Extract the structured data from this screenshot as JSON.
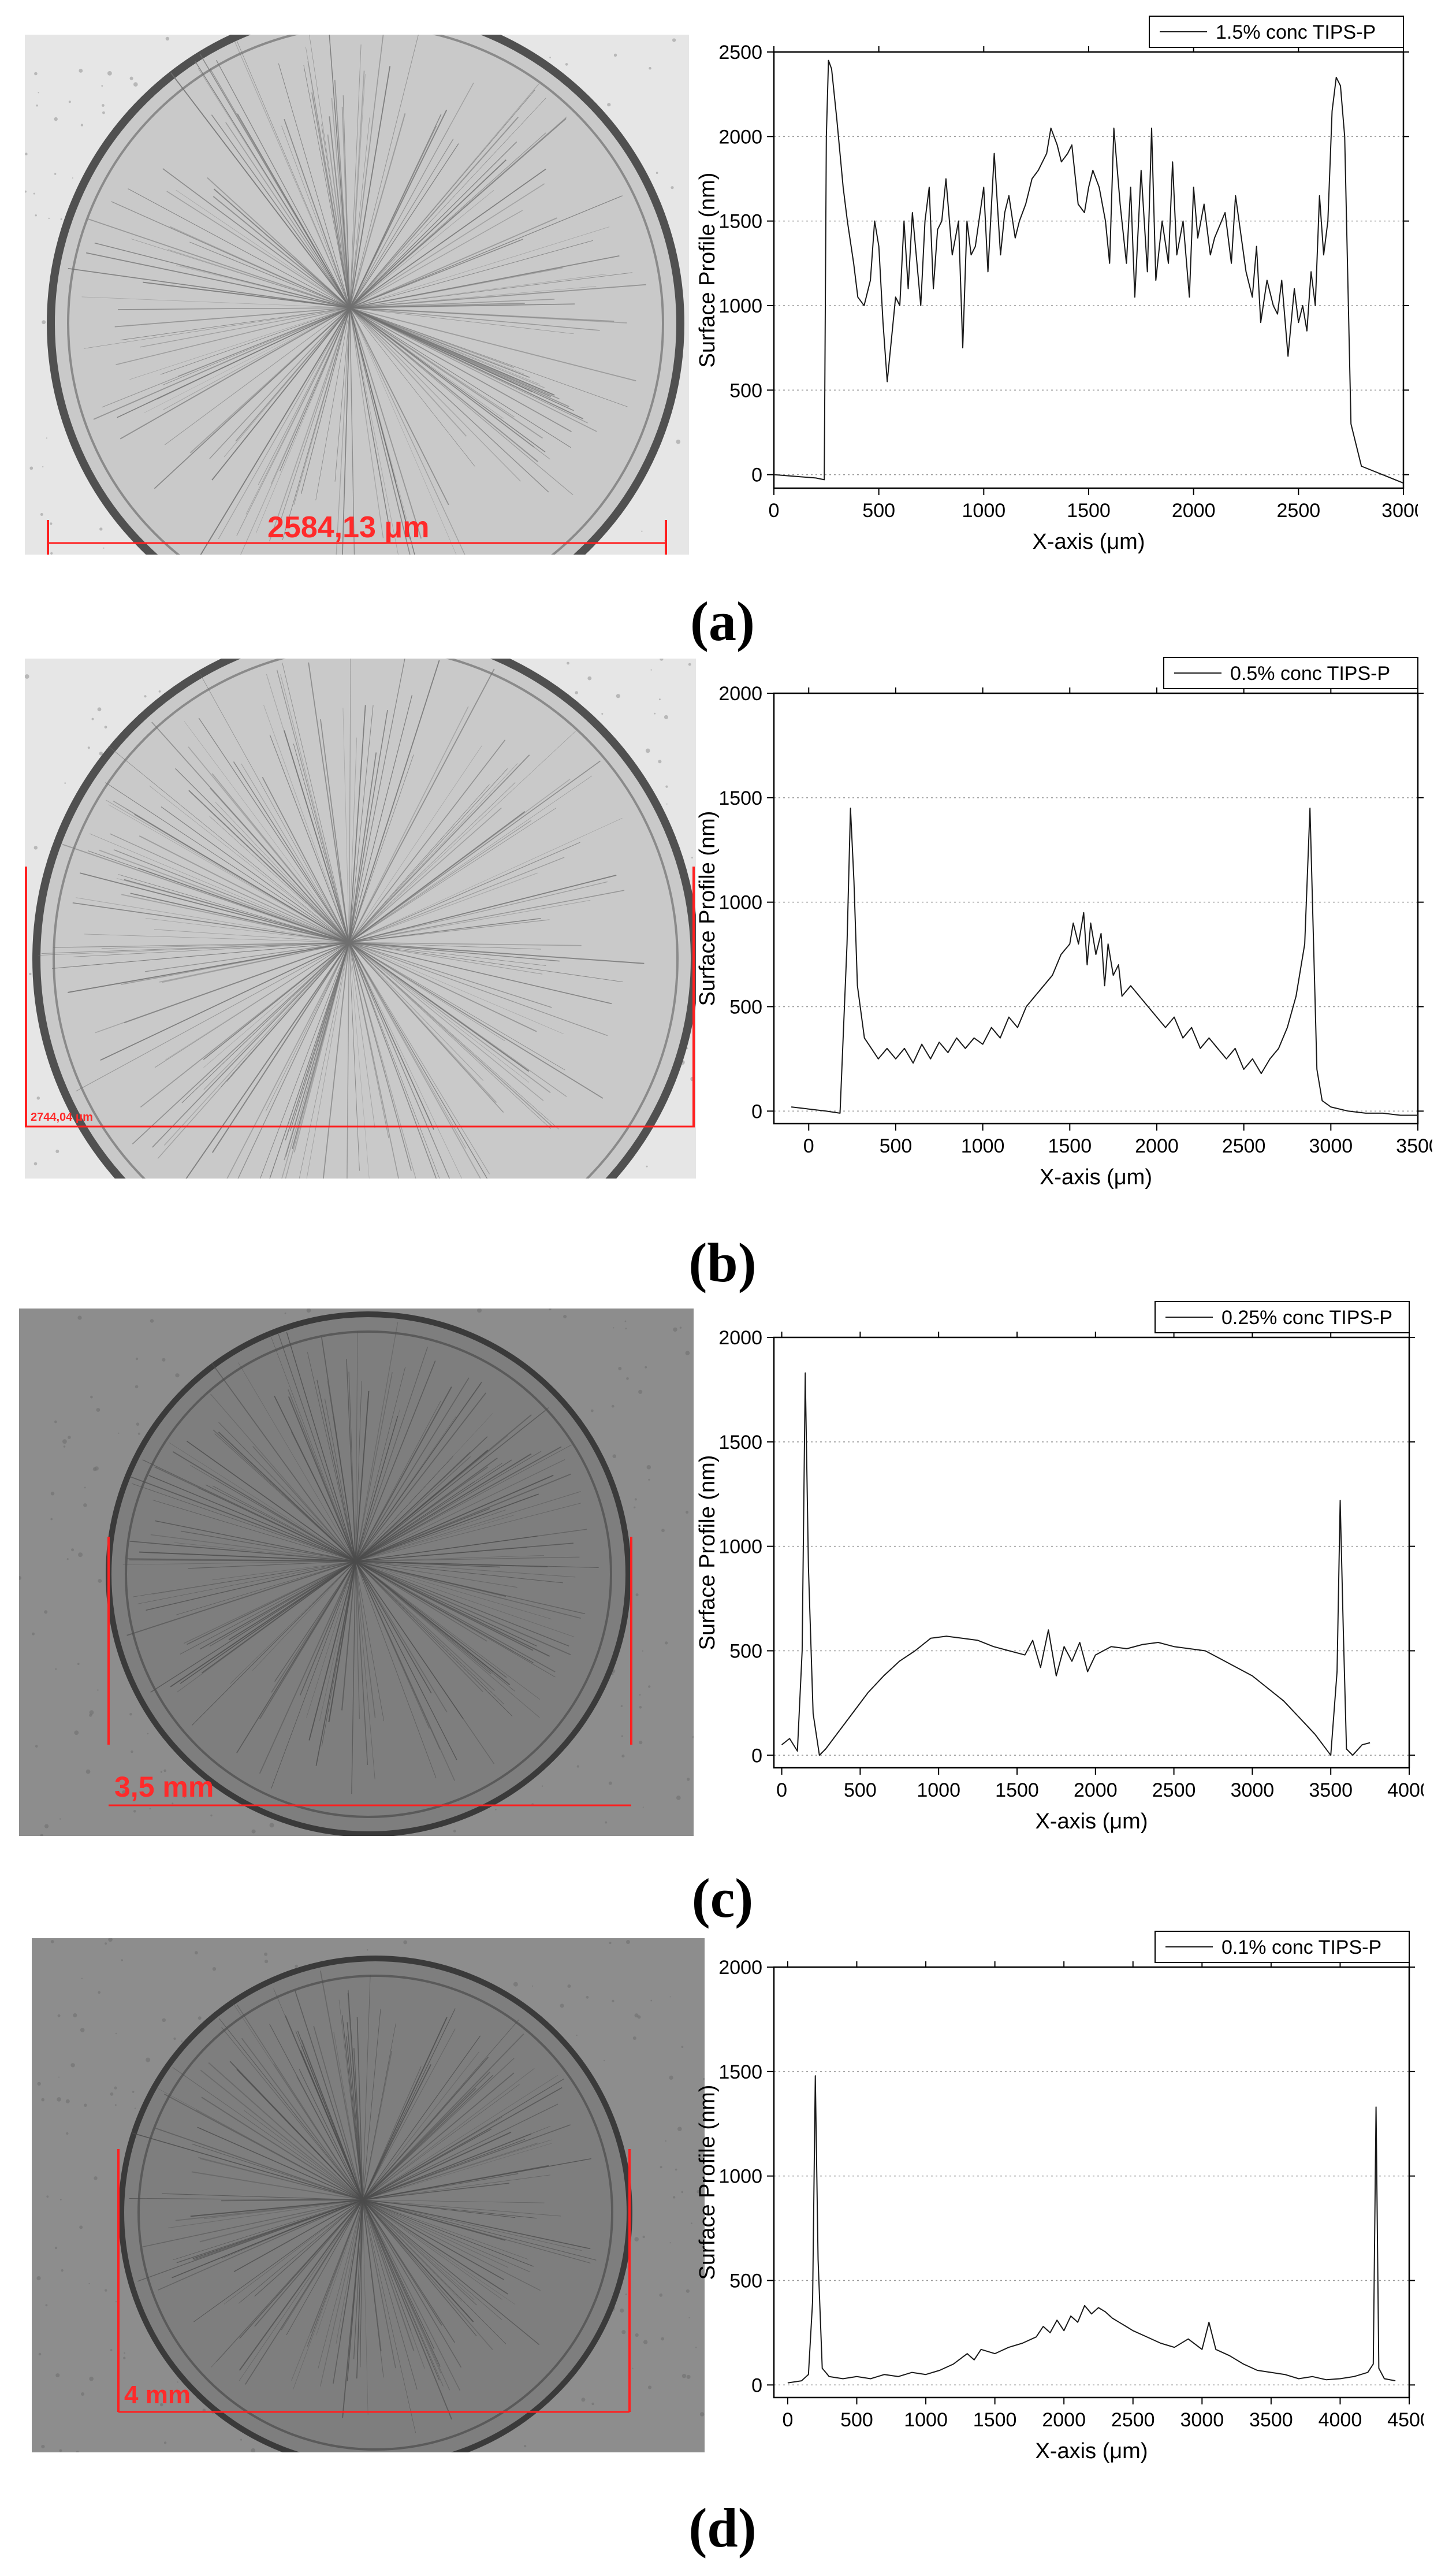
{
  "panels": [
    {
      "label": "(a)",
      "micrograph": {
        "scale_text": "2584,13 μm",
        "style": "light"
      },
      "chart_data": {
        "type": "line",
        "legend": "1.5% conc TIPS-P",
        "legend_position": "top-right",
        "xlabel": "X-axis (μm)",
        "ylabel": "Surface Profile (nm)",
        "xlim": [
          0,
          3000
        ],
        "ylim": [
          -80,
          2500
        ],
        "xticks": [
          0,
          500,
          1000,
          1500,
          2000,
          2500,
          3000
        ],
        "yticks": [
          0,
          500,
          1000,
          1500,
          2000,
          2500
        ],
        "grid": "horizontal-dotted",
        "x": [
          0,
          100,
          200,
          240,
          250,
          260,
          275,
          300,
          330,
          350,
          380,
          400,
          430,
          460,
          480,
          500,
          520,
          540,
          560,
          580,
          600,
          620,
          640,
          660,
          700,
          720,
          740,
          760,
          780,
          800,
          820,
          850,
          880,
          900,
          920,
          940,
          960,
          1000,
          1020,
          1050,
          1080,
          1100,
          1120,
          1150,
          1170,
          1200,
          1230,
          1260,
          1300,
          1320,
          1350,
          1370,
          1400,
          1420,
          1450,
          1480,
          1500,
          1520,
          1550,
          1580,
          1600,
          1620,
          1650,
          1680,
          1700,
          1720,
          1750,
          1780,
          1800,
          1820,
          1850,
          1880,
          1900,
          1920,
          1950,
          1980,
          2000,
          2020,
          2050,
          2080,
          2100,
          2150,
          2180,
          2200,
          2250,
          2280,
          2300,
          2320,
          2350,
          2380,
          2400,
          2420,
          2450,
          2480,
          2500,
          2520,
          2540,
          2560,
          2580,
          2600,
          2620,
          2640,
          2660,
          2680,
          2700,
          2720,
          2750,
          2800,
          2900,
          3000
        ],
        "y": [
          0,
          -10,
          -20,
          -30,
          2000,
          2450,
          2400,
          2100,
          1700,
          1500,
          1250,
          1050,
          1000,
          1150,
          1500,
          1350,
          900,
          550,
          800,
          1050,
          1000,
          1500,
          1100,
          1550,
          1000,
          1500,
          1700,
          1100,
          1450,
          1500,
          1750,
          1300,
          1500,
          750,
          1500,
          1300,
          1350,
          1700,
          1200,
          1900,
          1300,
          1550,
          1650,
          1400,
          1500,
          1600,
          1750,
          1800,
          1900,
          2050,
          1950,
          1850,
          1900,
          1950,
          1600,
          1550,
          1700,
          1800,
          1700,
          1500,
          1250,
          2050,
          1600,
          1250,
          1700,
          1050,
          1800,
          1200,
          2050,
          1150,
          1500,
          1250,
          1850,
          1300,
          1500,
          1050,
          1700,
          1400,
          1600,
          1300,
          1400,
          1550,
          1250,
          1650,
          1200,
          1050,
          1350,
          900,
          1150,
          1000,
          950,
          1150,
          700,
          1100,
          900,
          1000,
          850,
          1200,
          1000,
          1650,
          1300,
          1500,
          2150,
          2350,
          2300,
          2000,
          300,
          50,
          0,
          -50
        ]
      }
    },
    {
      "label": "(b)",
      "micrograph": {
        "scale_text": "2744,04 μm",
        "style": "light"
      },
      "chart_data": {
        "type": "line",
        "legend": "0.5% conc TIPS-P",
        "legend_position": "top-right",
        "xlabel": "X-axis (μm)",
        "ylabel": "Surface Profile (nm)",
        "xlim": [
          -200,
          3500
        ],
        "ylim": [
          -60,
          2000
        ],
        "xticks": [
          0,
          500,
          1000,
          1500,
          2000,
          2500,
          3000,
          3500
        ],
        "yticks": [
          0,
          500,
          1000,
          1500,
          2000
        ],
        "grid": "horizontal-dotted",
        "x": [
          -100,
          0,
          100,
          180,
          220,
          240,
          260,
          280,
          320,
          360,
          400,
          450,
          500,
          550,
          600,
          650,
          700,
          750,
          800,
          850,
          900,
          950,
          1000,
          1050,
          1100,
          1150,
          1200,
          1250,
          1300,
          1350,
          1400,
          1450,
          1500,
          1520,
          1550,
          1580,
          1600,
          1620,
          1650,
          1680,
          1700,
          1720,
          1750,
          1780,
          1800,
          1850,
          1900,
          1950,
          2000,
          2050,
          2100,
          2150,
          2200,
          2250,
          2300,
          2350,
          2400,
          2450,
          2500,
          2550,
          2600,
          2650,
          2700,
          2750,
          2800,
          2850,
          2880,
          2920,
          2950,
          3000,
          3100,
          3200,
          3300,
          3400,
          3500
        ],
        "y": [
          20,
          10,
          0,
          -10,
          800,
          1450,
          1100,
          600,
          350,
          300,
          250,
          300,
          250,
          300,
          230,
          320,
          250,
          330,
          280,
          350,
          300,
          350,
          320,
          400,
          350,
          450,
          400,
          500,
          550,
          600,
          650,
          750,
          800,
          900,
          800,
          950,
          700,
          900,
          750,
          850,
          600,
          800,
          650,
          700,
          550,
          600,
          550,
          500,
          450,
          400,
          450,
          350,
          400,
          300,
          350,
          300,
          250,
          300,
          200,
          250,
          180,
          250,
          300,
          400,
          550,
          800,
          1450,
          200,
          50,
          20,
          0,
          -10,
          -10,
          -20,
          -20
        ]
      }
    },
    {
      "label": "(c)",
      "micrograph": {
        "scale_text": "3,5 mm",
        "style": "dark"
      },
      "chart_data": {
        "type": "line",
        "legend": "0.25% conc TIPS-P",
        "legend_position": "top-right",
        "xlabel": "X-axis (μm)",
        "ylabel": "Surface Profile (nm)",
        "xlim": [
          -50,
          4000
        ],
        "ylim": [
          -60,
          2000
        ],
        "xticks": [
          0,
          500,
          1000,
          1500,
          2000,
          2500,
          3000,
          3500,
          4000
        ],
        "yticks": [
          0,
          500,
          1000,
          1500,
          2000
        ],
        "grid": "horizontal-dotted",
        "x": [
          0,
          50,
          100,
          130,
          150,
          170,
          200,
          240,
          280,
          350,
          450,
          550,
          650,
          750,
          850,
          950,
          1050,
          1150,
          1250,
          1350,
          1450,
          1550,
          1600,
          1650,
          1700,
          1750,
          1800,
          1850,
          1900,
          1950,
          2000,
          2050,
          2100,
          2200,
          2300,
          2400,
          2500,
          2600,
          2700,
          2800,
          2900,
          3000,
          3100,
          3200,
          3300,
          3400,
          3450,
          3500,
          3540,
          3560,
          3580,
          3600,
          3640,
          3700,
          3750
        ],
        "y": [
          50,
          80,
          20,
          500,
          1830,
          900,
          200,
          0,
          30,
          100,
          200,
          300,
          380,
          450,
          500,
          560,
          570,
          560,
          550,
          520,
          500,
          480,
          550,
          420,
          600,
          380,
          520,
          450,
          540,
          400,
          480,
          500,
          520,
          510,
          530,
          540,
          520,
          510,
          500,
          460,
          420,
          380,
          320,
          260,
          180,
          100,
          50,
          0,
          400,
          1220,
          600,
          30,
          0,
          50,
          60
        ]
      }
    },
    {
      "label": "(d)",
      "micrograph": {
        "scale_text": "4 mm",
        "style": "dark"
      },
      "chart_data": {
        "type": "line",
        "legend": "0.1% conc TIPS-P",
        "legend_position": "top-right",
        "xlabel": "X-axis (μm)",
        "ylabel": "Surface Profile (nm)",
        "xlim": [
          -100,
          4500
        ],
        "ylim": [
          -60,
          2000
        ],
        "xticks": [
          0,
          500,
          1000,
          1500,
          2000,
          2500,
          3000,
          3500,
          4000,
          4500
        ],
        "yticks": [
          0,
          500,
          1000,
          1500,
          2000
        ],
        "grid": "horizontal-dotted",
        "x": [
          0,
          100,
          150,
          180,
          200,
          220,
          250,
          300,
          400,
          500,
          600,
          700,
          800,
          900,
          1000,
          1100,
          1200,
          1300,
          1350,
          1400,
          1500,
          1600,
          1700,
          1800,
          1850,
          1900,
          1950,
          2000,
          2050,
          2100,
          2150,
          2200,
          2250,
          2300,
          2350,
          2400,
          2450,
          2500,
          2600,
          2700,
          2800,
          2900,
          3000,
          3050,
          3100,
          3200,
          3300,
          3400,
          3500,
          3600,
          3700,
          3800,
          3900,
          4000,
          4100,
          4200,
          4240,
          4260,
          4280,
          4320,
          4400
        ],
        "y": [
          10,
          20,
          50,
          400,
          1480,
          600,
          80,
          40,
          30,
          40,
          30,
          50,
          40,
          60,
          50,
          70,
          100,
          150,
          120,
          170,
          150,
          180,
          200,
          230,
          280,
          250,
          310,
          260,
          330,
          300,
          380,
          340,
          370,
          350,
          320,
          300,
          280,
          260,
          230,
          200,
          180,
          220,
          170,
          300,
          170,
          140,
          100,
          70,
          60,
          50,
          30,
          40,
          25,
          30,
          40,
          60,
          100,
          1330,
          80,
          30,
          20
        ]
      }
    }
  ]
}
